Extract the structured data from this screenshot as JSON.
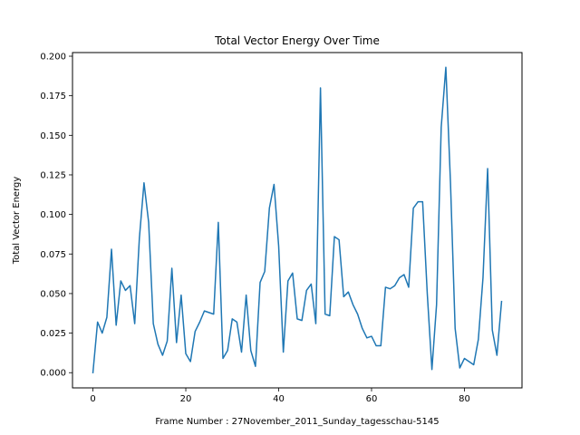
{
  "chart_data": {
    "type": "line",
    "title": "Total Vector Energy Over Time",
    "xlabel": "Frame Number : 27November_2011_Sunday_tagesschau-5145",
    "ylabel": "Total Vector Energy",
    "xlim": [
      -4.4,
      92.4
    ],
    "ylim": [
      -0.0096,
      0.2023
    ],
    "xticks": [
      0,
      20,
      40,
      60,
      80
    ],
    "yticks": [
      0.0,
      0.025,
      0.05,
      0.075,
      0.1,
      0.125,
      0.15,
      0.175,
      0.2
    ],
    "ytick_labels": [
      "0.000",
      "0.025",
      "0.050",
      "0.075",
      "0.100",
      "0.125",
      "0.150",
      "0.175",
      "0.200"
    ],
    "grid": false,
    "color": "#1f77b4",
    "series": [
      {
        "x": [
          0,
          1,
          2,
          3,
          4,
          5,
          6,
          7,
          8,
          9,
          10,
          11,
          12,
          13,
          14,
          15,
          16,
          17,
          18,
          19,
          20,
          21,
          22,
          23,
          24,
          25,
          26,
          27,
          28,
          29,
          30,
          31,
          32,
          33,
          34,
          35,
          36,
          37,
          38,
          39,
          40,
          41,
          42,
          43,
          44,
          45,
          46,
          47,
          48,
          49,
          50,
          51,
          52,
          53,
          54,
          55,
          56,
          57,
          58,
          59,
          60,
          61,
          62,
          63,
          64,
          65,
          66,
          67,
          68,
          69,
          70,
          71,
          72,
          73,
          74,
          75,
          76,
          77,
          78,
          79,
          80,
          81,
          82,
          83,
          84,
          85,
          86,
          87,
          88
        ],
        "values": [
          0.0,
          0.032,
          0.025,
          0.035,
          0.078,
          0.03,
          0.058,
          0.052,
          0.055,
          0.031,
          0.085,
          0.12,
          0.095,
          0.031,
          0.018,
          0.011,
          0.02,
          0.066,
          0.019,
          0.049,
          0.012,
          0.007,
          0.026,
          0.032,
          0.039,
          0.038,
          0.037,
          0.095,
          0.009,
          0.014,
          0.034,
          0.032,
          0.013,
          0.049,
          0.014,
          0.004,
          0.057,
          0.064,
          0.104,
          0.119,
          0.08,
          0.013,
          0.058,
          0.063,
          0.034,
          0.033,
          0.052,
          0.056,
          0.031,
          0.18,
          0.037,
          0.036,
          0.086,
          0.084,
          0.048,
          0.051,
          0.043,
          0.037,
          0.028,
          0.022,
          0.023,
          0.017,
          0.017,
          0.054,
          0.053,
          0.055,
          0.06,
          0.062,
          0.054,
          0.104,
          0.108,
          0.108,
          0.05,
          0.002,
          0.043,
          0.155,
          0.193,
          0.12,
          0.028,
          0.003,
          0.009,
          0.007,
          0.005,
          0.021,
          0.06,
          0.129,
          0.027,
          0.011,
          0.045
        ]
      }
    ]
  }
}
